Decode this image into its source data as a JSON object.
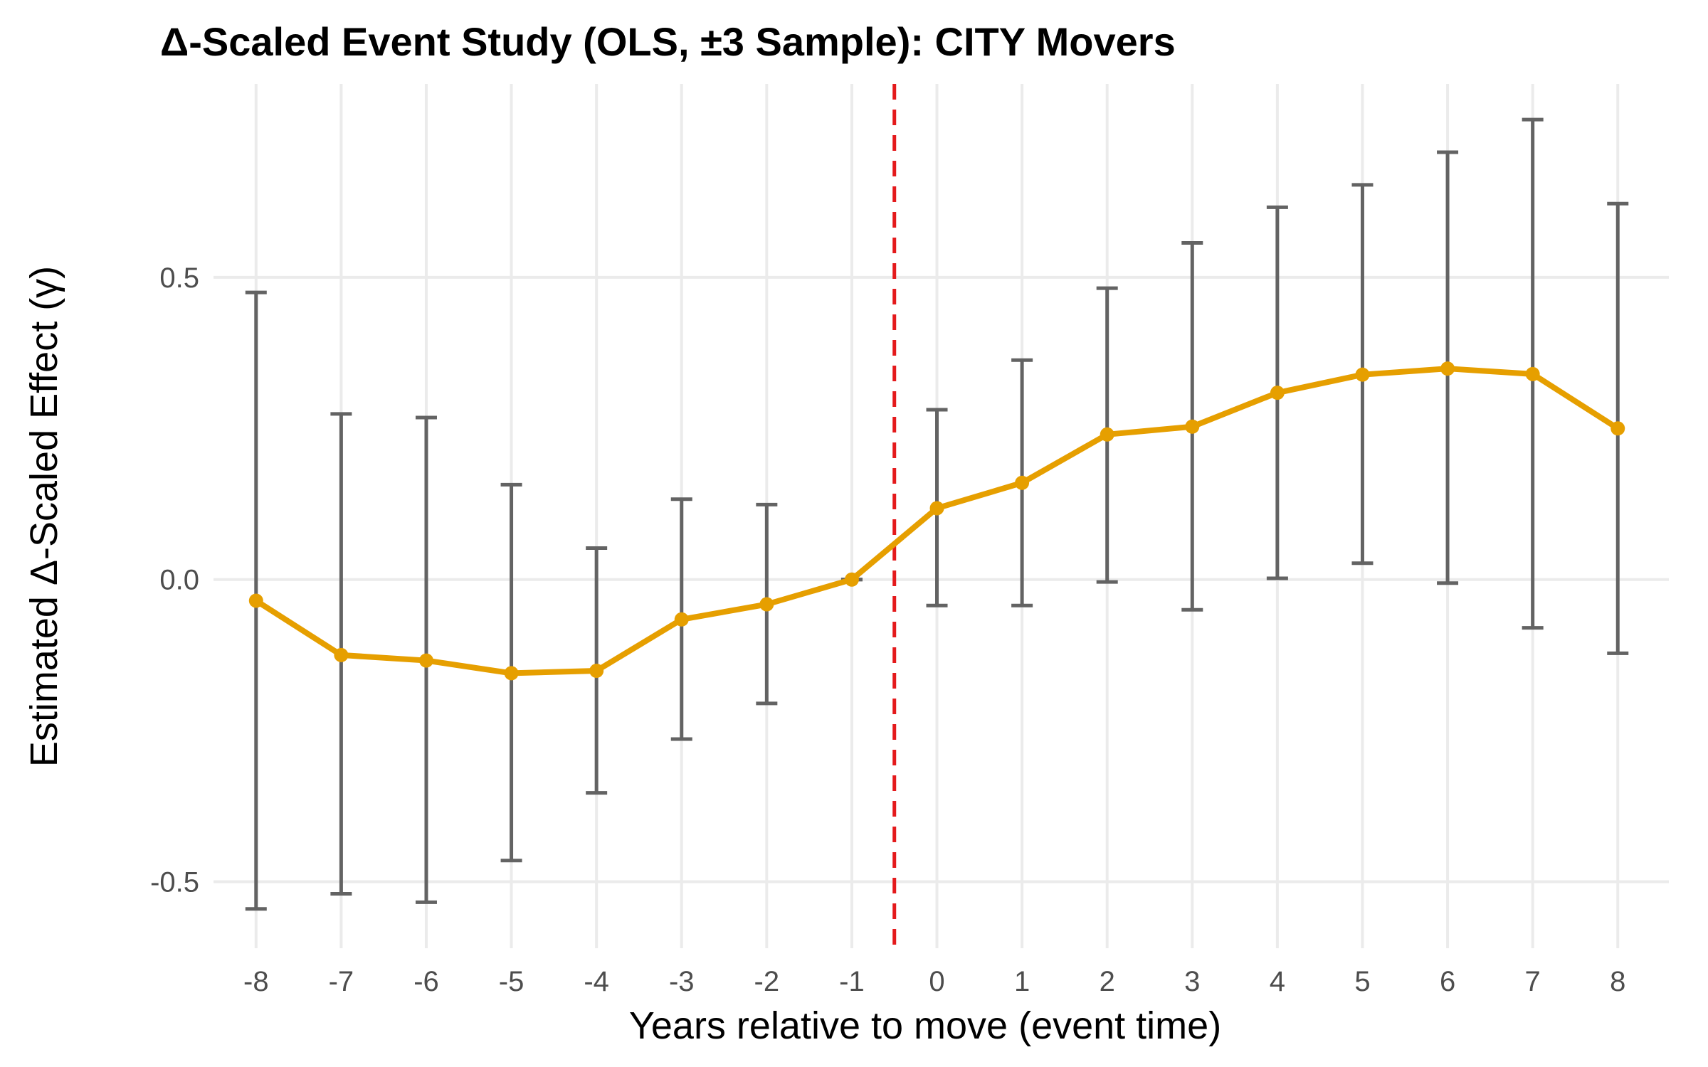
{
  "chart_data": {
    "type": "line",
    "title": "Δ-Scaled Event Study (OLS, ±3 Sample): CITY Movers",
    "xlabel": "Years relative to move (event time)",
    "ylabel": "Estimated Δ-Scaled Effect (γ)",
    "x": [
      -8,
      -7,
      -6,
      -5,
      -4,
      -3,
      -2,
      -1,
      0,
      1,
      2,
      3,
      4,
      5,
      6,
      7,
      8
    ],
    "x_tick_labels": [
      "-8",
      "-7",
      "-6",
      "-5",
      "-4",
      "-3",
      "-2",
      "-1",
      "0",
      "1",
      "2",
      "3",
      "4",
      "5",
      "6",
      "7",
      "8"
    ],
    "y_ticks": [
      -0.5,
      0.0,
      0.5
    ],
    "y_tick_labels": [
      "-0.5",
      "0.0",
      "0.5"
    ],
    "xlim": [
      -8.5,
      8.6
    ],
    "ylim": [
      -0.61,
      0.82
    ],
    "grid": true,
    "series": [
      {
        "values": [
          -0.035,
          -0.125,
          -0.134,
          -0.155,
          -0.151,
          -0.066,
          -0.041,
          0.0,
          0.118,
          0.16,
          0.24,
          0.253,
          0.309,
          0.339,
          0.349,
          0.34,
          0.25
        ],
        "ci_lower": [
          -0.545,
          -0.52,
          -0.534,
          -0.465,
          -0.353,
          -0.264,
          -0.205,
          0.0,
          -0.043,
          -0.043,
          -0.004,
          -0.05,
          0.002,
          0.027,
          -0.006,
          -0.08,
          -0.122
        ],
        "ci_upper": [
          0.475,
          0.274,
          0.268,
          0.157,
          0.052,
          0.133,
          0.124,
          0.0,
          0.281,
          0.363,
          0.482,
          0.557,
          0.616,
          0.653,
          0.707,
          0.761,
          0.622
        ],
        "color": "#E69F00"
      }
    ],
    "errorbar_color": "#636363",
    "reference_line": {
      "x": -0.5,
      "style": "dashed",
      "color": "#E41A1C"
    }
  }
}
